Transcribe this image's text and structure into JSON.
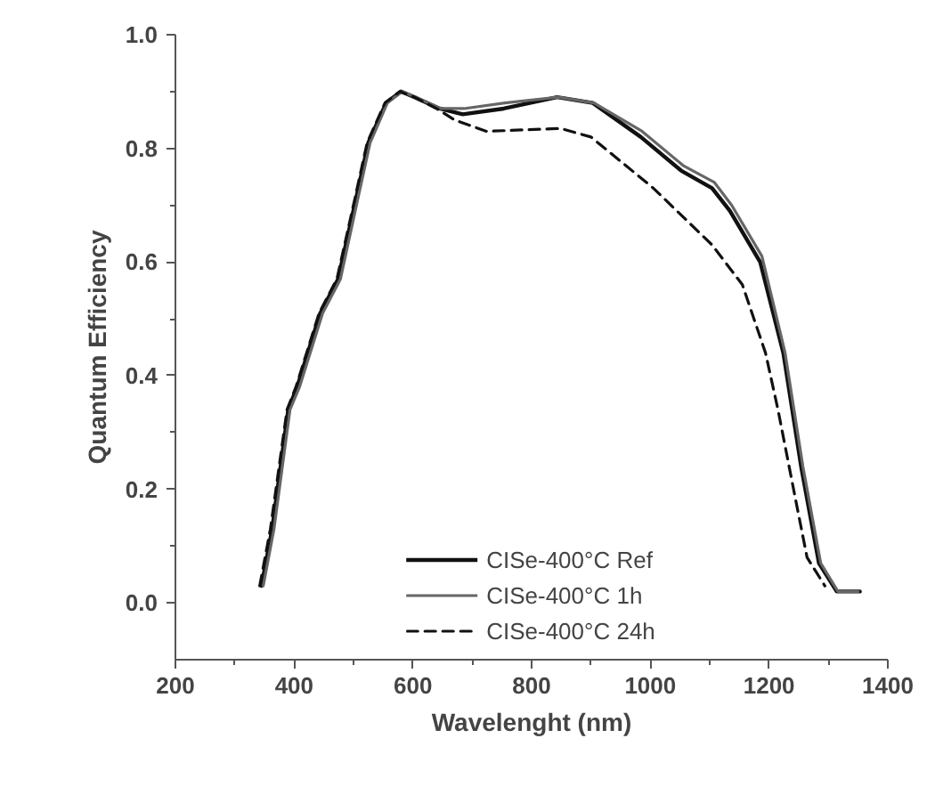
{
  "chart_data": {
    "type": "line",
    "xlabel": "Wavelenght (nm)",
    "ylabel": "Quantum Efficiency",
    "xlim": [
      200,
      1400
    ],
    "xticks": [
      200,
      400,
      600,
      800,
      1000,
      1200,
      1400
    ],
    "ylim": [
      -0.1,
      1.0
    ],
    "yticks": [
      {
        "value": 0,
        "label": "0.0"
      },
      0.2,
      0.4,
      0.6,
      0.8,
      {
        "value": 1,
        "label": "1.0"
      }
    ],
    "grid": false,
    "legend": "bottom",
    "marker": "none",
    "series": [
      {
        "name": "CISe-400°C Ref",
        "color": "#111111",
        "line_style": "solid",
        "x": [
          345,
          363,
          390,
          405,
          444,
          474,
          504,
          525,
          555,
          580,
          603,
          645,
          684,
          753,
          843,
          903,
          984,
          1053,
          1104,
          1134,
          1185,
          1224,
          1254,
          1284,
          1314,
          1353
        ],
        "values": [
          0.03,
          0.13,
          0.34,
          0.38,
          0.51,
          0.57,
          0.71,
          0.81,
          0.88,
          0.9,
          0.89,
          0.87,
          0.86,
          0.87,
          0.89,
          0.88,
          0.82,
          0.76,
          0.73,
          0.69,
          0.6,
          0.44,
          0.24,
          0.07,
          0.02,
          0.02
        ]
      },
      {
        "name": "CISe-400°C 1h",
        "color": "#666666",
        "line_style": "solid",
        "x": [
          348,
          366,
          393,
          409,
          448,
          478,
          507,
          528,
          557,
          582,
          605,
          647,
          686,
          755,
          845,
          905,
          986,
          1055,
          1108,
          1137,
          1188,
          1227,
          1257,
          1287,
          1316,
          1350
        ],
        "values": [
          0.03,
          0.13,
          0.34,
          0.38,
          0.51,
          0.57,
          0.71,
          0.81,
          0.88,
          0.9,
          0.89,
          0.87,
          0.87,
          0.88,
          0.89,
          0.88,
          0.83,
          0.77,
          0.74,
          0.7,
          0.61,
          0.44,
          0.24,
          0.07,
          0.02,
          0.02
        ]
      },
      {
        "name": "CISe-400°C 24h",
        "color": "#111111",
        "line_style": "dashed",
        "x": [
          342,
          360,
          388,
          403,
          442,
          472,
          502,
          523,
          553,
          578,
          603,
          640,
          670,
          724,
          849,
          900,
          1005,
          1104,
          1155,
          1194,
          1215,
          1245,
          1264,
          1294
        ],
        "values": [
          0.03,
          0.13,
          0.34,
          0.38,
          0.51,
          0.57,
          0.71,
          0.81,
          0.88,
          0.9,
          0.89,
          0.87,
          0.85,
          0.83,
          0.835,
          0.82,
          0.73,
          0.63,
          0.56,
          0.44,
          0.34,
          0.18,
          0.08,
          0.03
        ]
      }
    ]
  }
}
